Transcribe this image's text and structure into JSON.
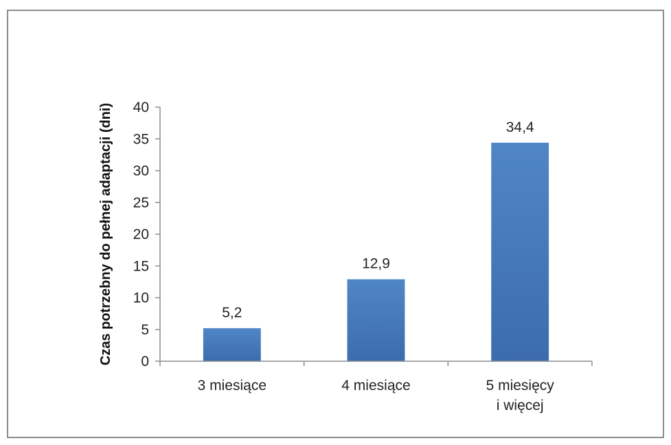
{
  "chart_data": {
    "type": "bar",
    "title": "",
    "xlabel": "",
    "ylabel": "Czas potrzebny do pełnej adaptacji (dni)",
    "categories": [
      [
        "3 miesiące"
      ],
      [
        "4 miesiące"
      ],
      [
        "5 miesięcy",
        "i więcej"
      ]
    ],
    "values": [
      5.2,
      12.9,
      34.4
    ],
    "value_labels": [
      "5,2",
      "12,9",
      "34,4"
    ],
    "ylim": [
      0,
      40
    ],
    "yticks": [
      0,
      5,
      10,
      15,
      20,
      25,
      30,
      35,
      40
    ],
    "grid": false,
    "legend": "none",
    "colors": {
      "bar": "#4a7ebf",
      "bar_dark": "#3a69a8",
      "axis": "#8c8c8c"
    }
  }
}
